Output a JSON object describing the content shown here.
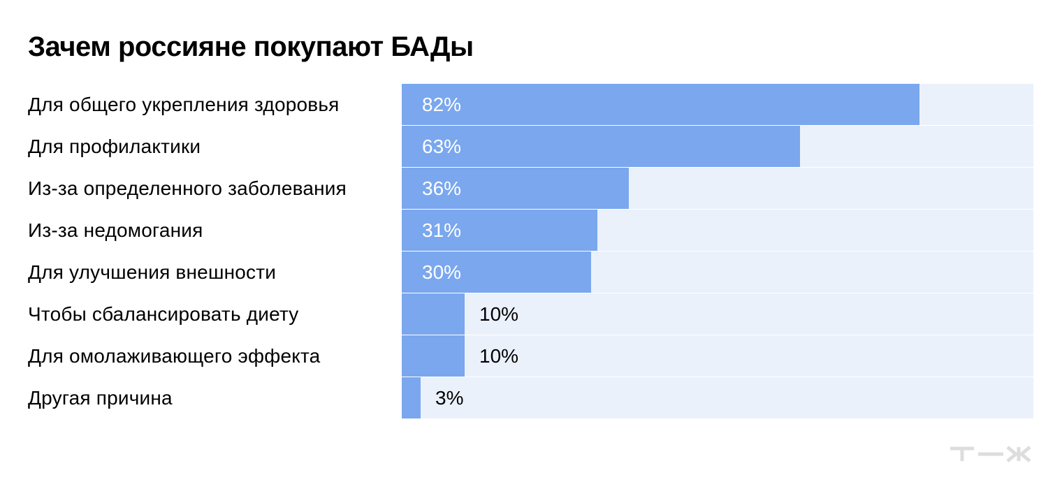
{
  "chart_data": {
    "type": "bar",
    "orientation": "horizontal",
    "title": "Зачем россияне покупают БАДы",
    "categories": [
      "Для общего укрепления здоровья",
      "Для профилактики",
      "Из-за определенного заболевания",
      "Из-за недомогания",
      "Для улучшения внешности",
      "Чтобы сбалансировать диету",
      "Для омолаживающего эффекта",
      "Другая причина"
    ],
    "values": [
      82,
      63,
      36,
      31,
      30,
      10,
      10,
      3
    ],
    "value_labels": [
      "82%",
      "63%",
      "36%",
      "31%",
      "30%",
      "10%",
      "10%",
      "3%"
    ],
    "xlim": [
      0,
      100
    ],
    "unit": "%",
    "grid": false,
    "legend": "none",
    "colors": {
      "bar": "#7aa7ee",
      "track": "#ebf1fb",
      "label_inside": "#ffffff",
      "label_outside": "#000000",
      "logo": "#dddddd"
    }
  },
  "logo": {
    "text": "т—ж",
    "icon": "tzh-logo"
  }
}
